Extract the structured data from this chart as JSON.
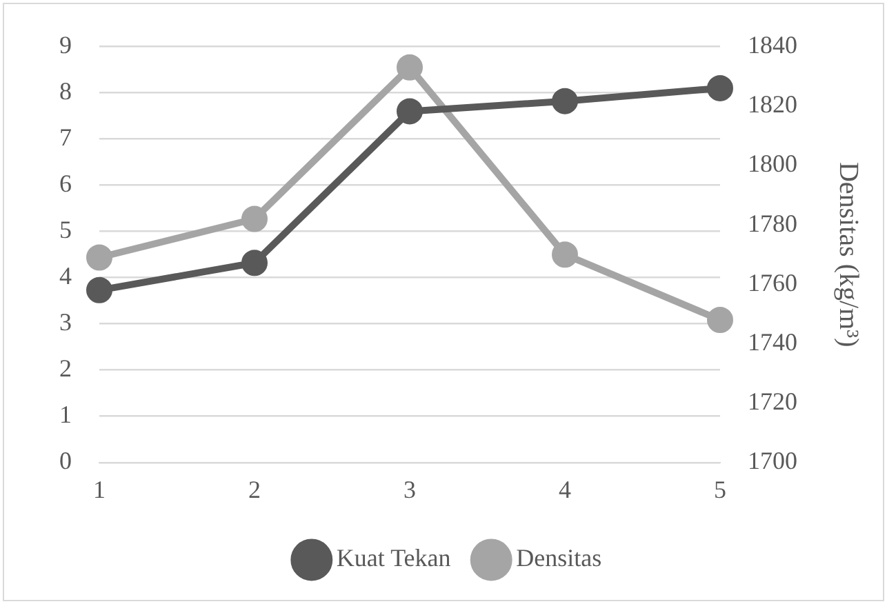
{
  "chart_data": {
    "type": "line",
    "categories": [
      "1",
      "2",
      "3",
      "4",
      "5"
    ],
    "series": [
      {
        "name": "Kuat Tekan",
        "color": "#595959",
        "values": [
          3.73,
          4.32,
          7.6,
          7.82,
          8.1
        ]
      },
      {
        "name": "Densitas",
        "color": "#a5a5a5",
        "axis": "y2",
        "values": [
          1769,
          1782,
          1833,
          1770,
          1748
        ]
      }
    ],
    "ylim": [
      0,
      9
    ],
    "yticks": [
      0,
      1,
      2,
      3,
      4,
      5,
      6,
      7,
      8,
      9
    ],
    "y2lim": [
      1700,
      1840
    ],
    "y2ticks": [
      1700,
      1720,
      1740,
      1760,
      1780,
      1800,
      1820,
      1840
    ],
    "y2label": "Densitas (kg/m³)",
    "grid": "y",
    "legend": "bottom",
    "marker": "circle",
    "line_style": "solid"
  }
}
